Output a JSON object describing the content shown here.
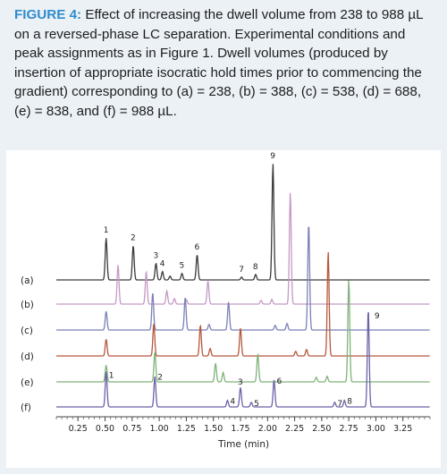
{
  "caption": {
    "label": "FIGURE 4:",
    "text": " Effect of increasing the dwell volume from 238 to 988 µL on a reversed-phase LC separation. Experimental conditions and peak assignments as in Figure 1. Dwell volumes (produced by insertion of appropriate isocratic hold times prior to commencing the gradient) corresponding to (a) = 238, (b) = 388, (c) = 538, (d) = 688, (e) = 838, and (f) = 988 µL."
  },
  "chart_data": {
    "type": "line",
    "title": "",
    "xlabel": "Time (min)",
    "ylabel": "",
    "xlim": [
      0.05,
      3.5
    ],
    "xticks": [
      0.25,
      0.5,
      0.75,
      1.0,
      1.25,
      1.5,
      1.75,
      2.0,
      2.25,
      2.5,
      2.75,
      3.0,
      3.25
    ],
    "xtick_labels": [
      "0.25",
      "0.50",
      "0.75",
      "1.00",
      "1.25",
      "1.50",
      "1.75",
      "2.00",
      "2.25",
      "2.50",
      "2.75",
      "3.00",
      "3.25"
    ],
    "grid": false,
    "series": [
      {
        "name": "(a)",
        "color": "#3a3a3a",
        "peaks": [
          [
            0.51,
            0.45
          ],
          [
            0.76,
            0.37
          ],
          [
            0.97,
            0.18
          ],
          [
            1.03,
            0.09
          ],
          [
            1.1,
            0.04
          ],
          [
            1.21,
            0.07
          ],
          [
            1.35,
            0.27
          ],
          [
            1.76,
            0.03
          ],
          [
            1.89,
            0.06
          ],
          [
            2.05,
            1.25
          ]
        ],
        "peak_labels": [
          "1",
          "2",
          "3",
          "4",
          "5",
          "6",
          "7",
          "8",
          "9"
        ],
        "label_peaks": [
          0,
          1,
          2,
          3,
          5,
          6,
          7,
          8,
          9
        ]
      },
      {
        "name": "(b)",
        "color": "#c49ac4",
        "peaks": [
          [
            0.62,
            0.42
          ],
          [
            0.88,
            0.35
          ],
          [
            1.07,
            0.14
          ],
          [
            1.14,
            0.06
          ],
          [
            1.25,
            0.05
          ],
          [
            1.45,
            0.25
          ],
          [
            1.94,
            0.04
          ],
          [
            2.04,
            0.05
          ],
          [
            2.21,
            1.2
          ]
        ],
        "peak_labels": [],
        "label_peaks": []
      },
      {
        "name": "(c)",
        "color": "#7b80b8",
        "peaks": [
          [
            0.51,
            0.2
          ],
          [
            0.94,
            0.4
          ],
          [
            1.24,
            0.35
          ],
          [
            1.46,
            0.06
          ],
          [
            1.64,
            0.3
          ],
          [
            2.07,
            0.05
          ],
          [
            2.18,
            0.07
          ],
          [
            2.38,
            1.15
          ]
        ],
        "peak_labels": [],
        "label_peaks": []
      },
      {
        "name": "(d)",
        "color": "#b5583c",
        "peaks": [
          [
            0.51,
            0.18
          ],
          [
            0.95,
            0.35
          ],
          [
            1.38,
            0.33
          ],
          [
            1.47,
            0.08
          ],
          [
            1.75,
            0.3
          ],
          [
            2.26,
            0.05
          ],
          [
            2.36,
            0.07
          ],
          [
            2.56,
            1.12
          ]
        ],
        "peak_labels": [],
        "label_peaks": []
      },
      {
        "name": "(e)",
        "color": "#7fb27a",
        "peaks": [
          [
            0.51,
            0.18
          ],
          [
            0.96,
            0.32
          ],
          [
            1.52,
            0.2
          ],
          [
            1.59,
            0.1
          ],
          [
            1.91,
            0.3
          ],
          [
            2.45,
            0.05
          ],
          [
            2.55,
            0.06
          ],
          [
            2.75,
            1.1
          ]
        ],
        "peak_labels": [],
        "label_peaks": []
      },
      {
        "name": "(f)",
        "color": "#6b62a8",
        "peaks": [
          [
            0.51,
            0.38
          ],
          [
            0.96,
            0.33
          ],
          [
            1.63,
            0.07
          ],
          [
            1.75,
            0.21
          ],
          [
            1.85,
            0.05
          ],
          [
            2.06,
            0.29
          ],
          [
            2.62,
            0.05
          ],
          [
            2.71,
            0.07
          ],
          [
            2.93,
            1.05
          ]
        ],
        "peak_labels": [
          "1",
          "2",
          "4",
          "3",
          "5",
          "6",
          "7",
          "8",
          "9"
        ],
        "label_peaks": [
          0,
          1,
          2,
          3,
          4,
          5,
          6,
          7,
          8
        ]
      }
    ]
  }
}
